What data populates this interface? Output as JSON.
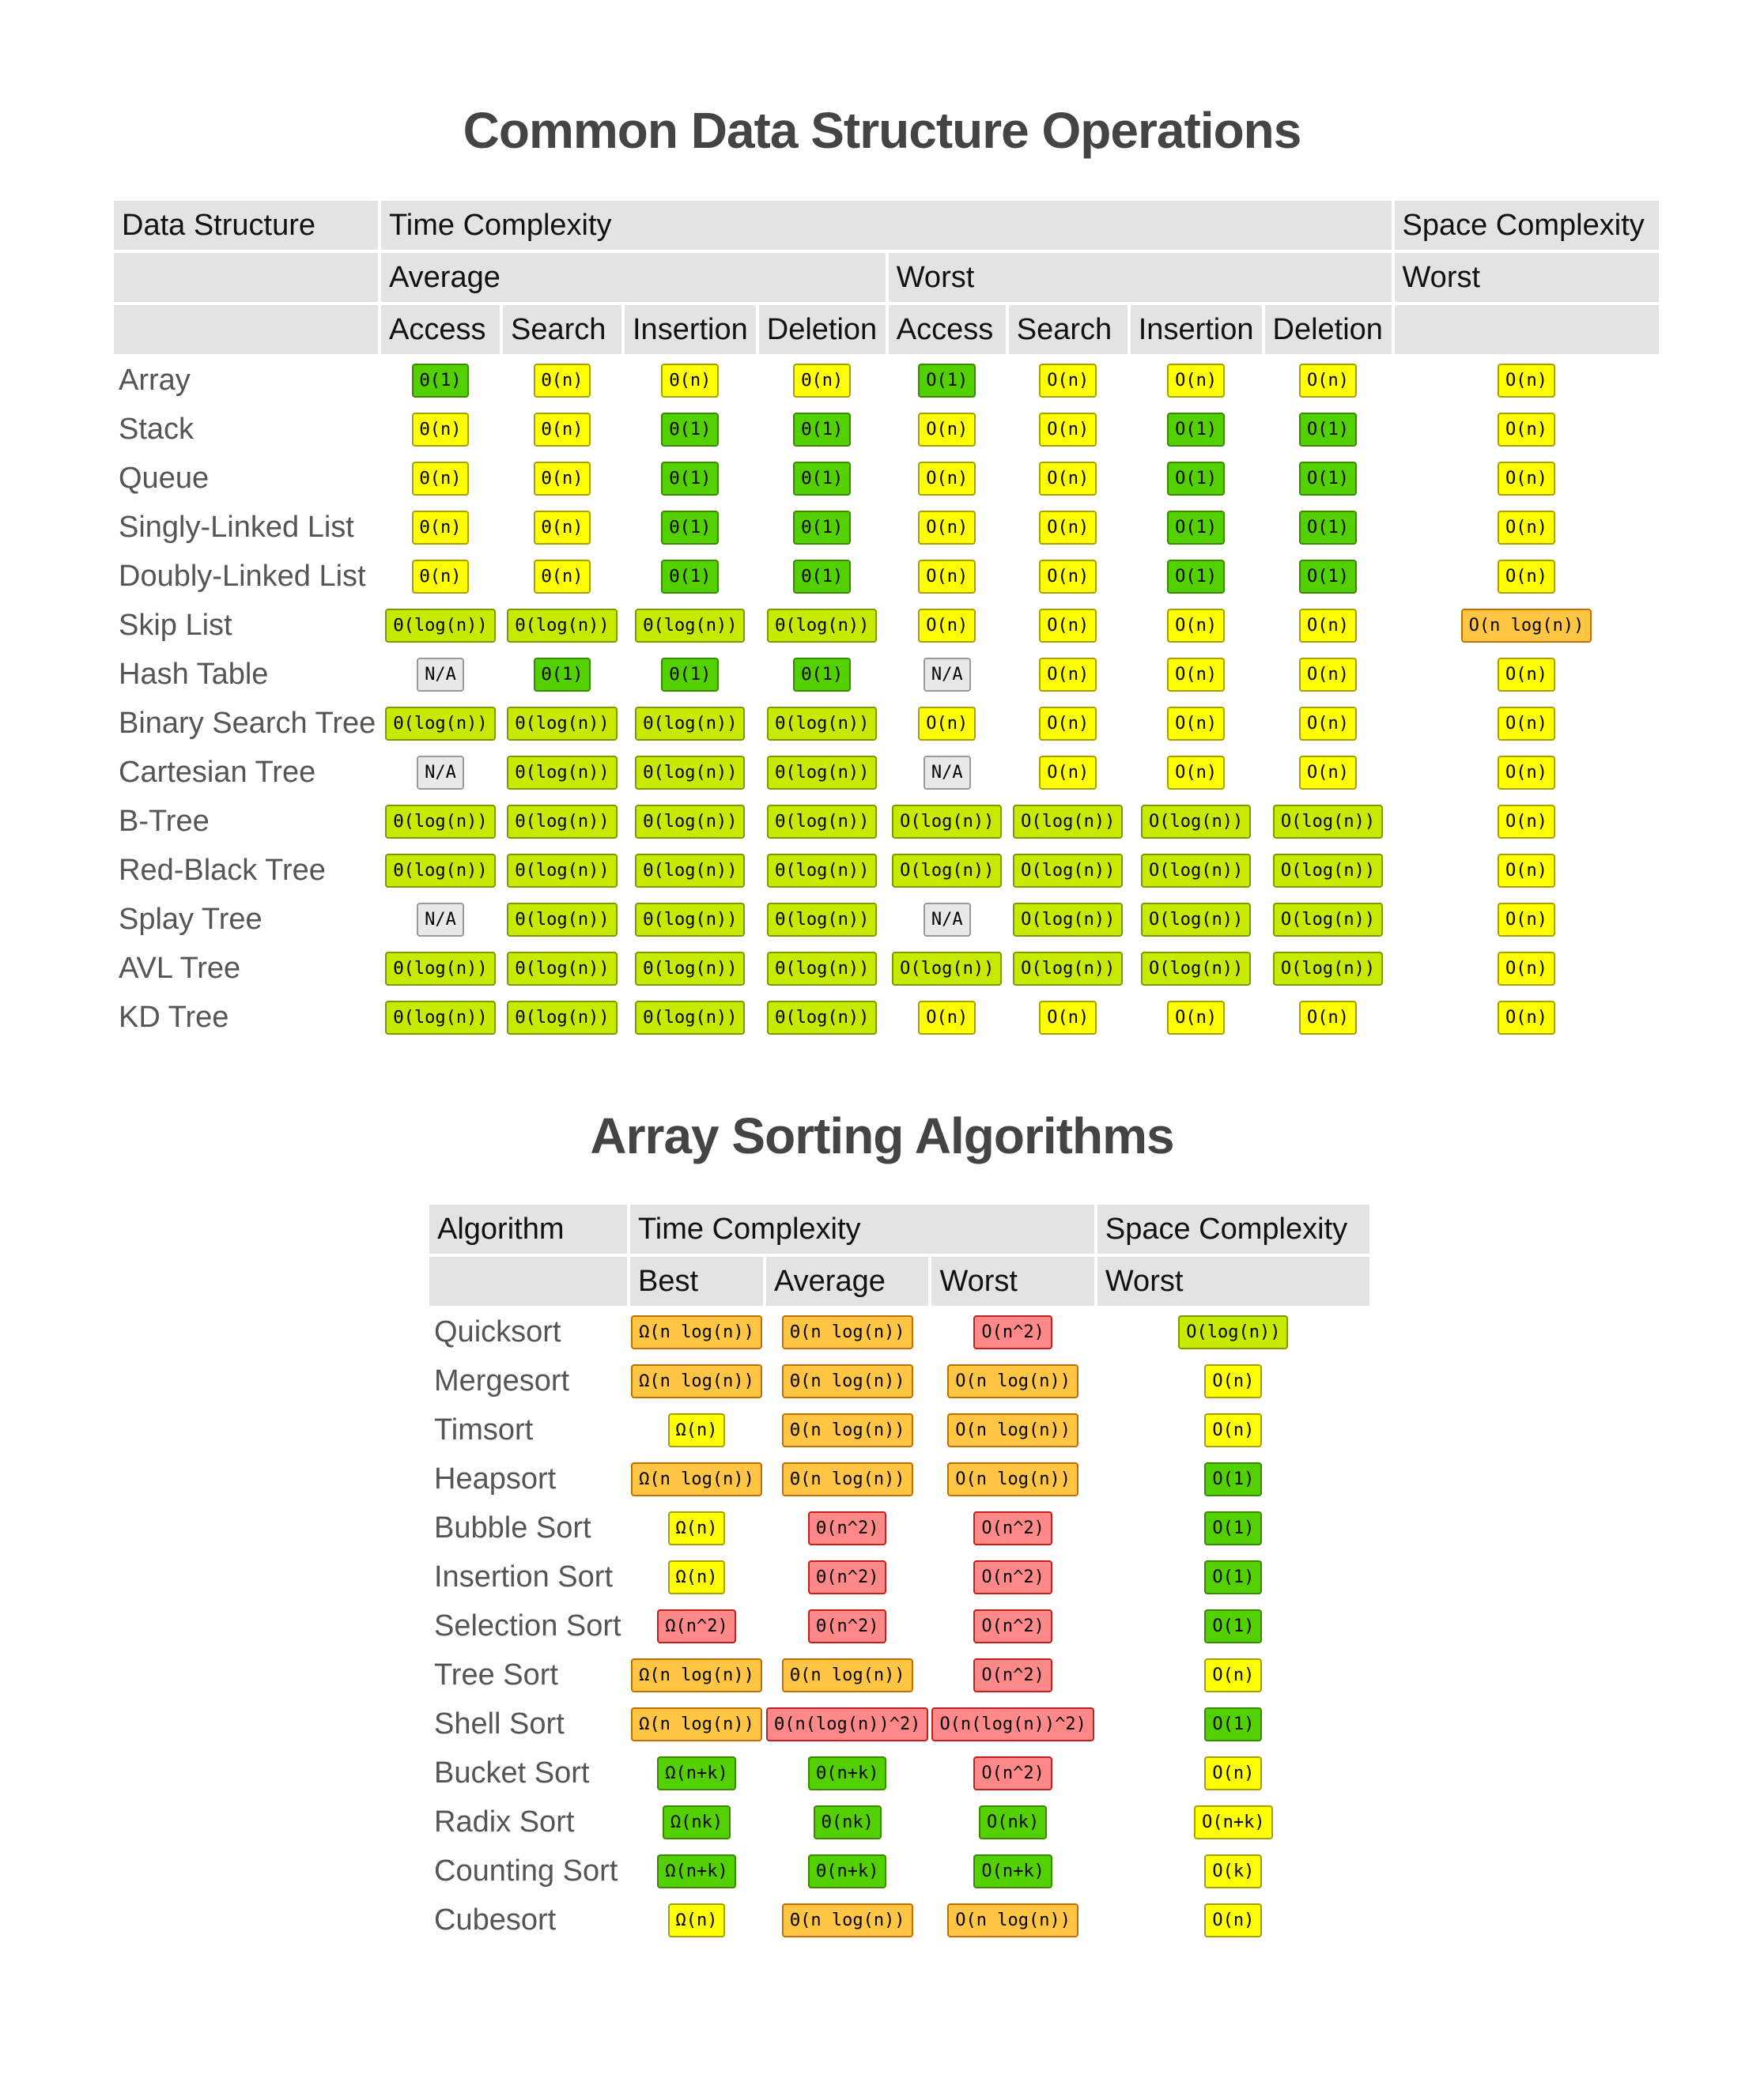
{
  "ops": {
    "title": "Common Data Structure Operations",
    "headers": {
      "data_structure": "Data Structure",
      "time_complexity": "Time Complexity",
      "space_complexity": "Space Complexity",
      "average": "Average",
      "worst": "Worst",
      "space_worst": "Worst",
      "ops": [
        "Access",
        "Search",
        "Insertion",
        "Deletion",
        "Access",
        "Search",
        "Insertion",
        "Deletion"
      ]
    },
    "rows": [
      {
        "name": "Array",
        "cells": [
          [
            "Θ(1)",
            "g"
          ],
          [
            "Θ(n)",
            "y"
          ],
          [
            "Θ(n)",
            "y"
          ],
          [
            "Θ(n)",
            "y"
          ],
          [
            "O(1)",
            "g"
          ],
          [
            "O(n)",
            "y"
          ],
          [
            "O(n)",
            "y"
          ],
          [
            "O(n)",
            "y"
          ],
          [
            "O(n)",
            "y"
          ]
        ]
      },
      {
        "name": "Stack",
        "cells": [
          [
            "Θ(n)",
            "y"
          ],
          [
            "Θ(n)",
            "y"
          ],
          [
            "Θ(1)",
            "g"
          ],
          [
            "Θ(1)",
            "g"
          ],
          [
            "O(n)",
            "y"
          ],
          [
            "O(n)",
            "y"
          ],
          [
            "O(1)",
            "g"
          ],
          [
            "O(1)",
            "g"
          ],
          [
            "O(n)",
            "y"
          ]
        ]
      },
      {
        "name": "Queue",
        "cells": [
          [
            "Θ(n)",
            "y"
          ],
          [
            "Θ(n)",
            "y"
          ],
          [
            "Θ(1)",
            "g"
          ],
          [
            "Θ(1)",
            "g"
          ],
          [
            "O(n)",
            "y"
          ],
          [
            "O(n)",
            "y"
          ],
          [
            "O(1)",
            "g"
          ],
          [
            "O(1)",
            "g"
          ],
          [
            "O(n)",
            "y"
          ]
        ]
      },
      {
        "name": "Singly-Linked List",
        "cells": [
          [
            "Θ(n)",
            "y"
          ],
          [
            "Θ(n)",
            "y"
          ],
          [
            "Θ(1)",
            "g"
          ],
          [
            "Θ(1)",
            "g"
          ],
          [
            "O(n)",
            "y"
          ],
          [
            "O(n)",
            "y"
          ],
          [
            "O(1)",
            "g"
          ],
          [
            "O(1)",
            "g"
          ],
          [
            "O(n)",
            "y"
          ]
        ]
      },
      {
        "name": "Doubly-Linked List",
        "cells": [
          [
            "Θ(n)",
            "y"
          ],
          [
            "Θ(n)",
            "y"
          ],
          [
            "Θ(1)",
            "g"
          ],
          [
            "Θ(1)",
            "g"
          ],
          [
            "O(n)",
            "y"
          ],
          [
            "O(n)",
            "y"
          ],
          [
            "O(1)",
            "g"
          ],
          [
            "O(1)",
            "g"
          ],
          [
            "O(n)",
            "y"
          ]
        ]
      },
      {
        "name": "Skip List",
        "cells": [
          [
            "Θ(log(n))",
            "yg"
          ],
          [
            "Θ(log(n))",
            "yg"
          ],
          [
            "Θ(log(n))",
            "yg"
          ],
          [
            "Θ(log(n))",
            "yg"
          ],
          [
            "O(n)",
            "y"
          ],
          [
            "O(n)",
            "y"
          ],
          [
            "O(n)",
            "y"
          ],
          [
            "O(n)",
            "y"
          ],
          [
            "O(n log(n))",
            "o"
          ]
        ]
      },
      {
        "name": "Hash Table",
        "cells": [
          [
            "N/A",
            "na"
          ],
          [
            "Θ(1)",
            "g"
          ],
          [
            "Θ(1)",
            "g"
          ],
          [
            "Θ(1)",
            "g"
          ],
          [
            "N/A",
            "na"
          ],
          [
            "O(n)",
            "y"
          ],
          [
            "O(n)",
            "y"
          ],
          [
            "O(n)",
            "y"
          ],
          [
            "O(n)",
            "y"
          ]
        ]
      },
      {
        "name": "Binary Search Tree",
        "cells": [
          [
            "Θ(log(n))",
            "yg"
          ],
          [
            "Θ(log(n))",
            "yg"
          ],
          [
            "Θ(log(n))",
            "yg"
          ],
          [
            "Θ(log(n))",
            "yg"
          ],
          [
            "O(n)",
            "y"
          ],
          [
            "O(n)",
            "y"
          ],
          [
            "O(n)",
            "y"
          ],
          [
            "O(n)",
            "y"
          ],
          [
            "O(n)",
            "y"
          ]
        ]
      },
      {
        "name": "Cartesian Tree",
        "cells": [
          [
            "N/A",
            "na"
          ],
          [
            "Θ(log(n))",
            "yg"
          ],
          [
            "Θ(log(n))",
            "yg"
          ],
          [
            "Θ(log(n))",
            "yg"
          ],
          [
            "N/A",
            "na"
          ],
          [
            "O(n)",
            "y"
          ],
          [
            "O(n)",
            "y"
          ],
          [
            "O(n)",
            "y"
          ],
          [
            "O(n)",
            "y"
          ]
        ]
      },
      {
        "name": "B-Tree",
        "cells": [
          [
            "Θ(log(n))",
            "yg"
          ],
          [
            "Θ(log(n))",
            "yg"
          ],
          [
            "Θ(log(n))",
            "yg"
          ],
          [
            "Θ(log(n))",
            "yg"
          ],
          [
            "O(log(n))",
            "yg"
          ],
          [
            "O(log(n))",
            "yg"
          ],
          [
            "O(log(n))",
            "yg"
          ],
          [
            "O(log(n))",
            "yg"
          ],
          [
            "O(n)",
            "y"
          ]
        ]
      },
      {
        "name": "Red-Black Tree",
        "cells": [
          [
            "Θ(log(n))",
            "yg"
          ],
          [
            "Θ(log(n))",
            "yg"
          ],
          [
            "Θ(log(n))",
            "yg"
          ],
          [
            "Θ(log(n))",
            "yg"
          ],
          [
            "O(log(n))",
            "yg"
          ],
          [
            "O(log(n))",
            "yg"
          ],
          [
            "O(log(n))",
            "yg"
          ],
          [
            "O(log(n))",
            "yg"
          ],
          [
            "O(n)",
            "y"
          ]
        ]
      },
      {
        "name": "Splay Tree",
        "cells": [
          [
            "N/A",
            "na"
          ],
          [
            "Θ(log(n))",
            "yg"
          ],
          [
            "Θ(log(n))",
            "yg"
          ],
          [
            "Θ(log(n))",
            "yg"
          ],
          [
            "N/A",
            "na"
          ],
          [
            "O(log(n))",
            "yg"
          ],
          [
            "O(log(n))",
            "yg"
          ],
          [
            "O(log(n))",
            "yg"
          ],
          [
            "O(n)",
            "y"
          ]
        ]
      },
      {
        "name": "AVL Tree",
        "cells": [
          [
            "Θ(log(n))",
            "yg"
          ],
          [
            "Θ(log(n))",
            "yg"
          ],
          [
            "Θ(log(n))",
            "yg"
          ],
          [
            "Θ(log(n))",
            "yg"
          ],
          [
            "O(log(n))",
            "yg"
          ],
          [
            "O(log(n))",
            "yg"
          ],
          [
            "O(log(n))",
            "yg"
          ],
          [
            "O(log(n))",
            "yg"
          ],
          [
            "O(n)",
            "y"
          ]
        ]
      },
      {
        "name": "KD Tree",
        "cells": [
          [
            "Θ(log(n))",
            "yg"
          ],
          [
            "Θ(log(n))",
            "yg"
          ],
          [
            "Θ(log(n))",
            "yg"
          ],
          [
            "Θ(log(n))",
            "yg"
          ],
          [
            "O(n)",
            "y"
          ],
          [
            "O(n)",
            "y"
          ],
          [
            "O(n)",
            "y"
          ],
          [
            "O(n)",
            "y"
          ],
          [
            "O(n)",
            "y"
          ]
        ]
      }
    ]
  },
  "sort": {
    "title": "Array Sorting Algorithms",
    "headers": {
      "algorithm": "Algorithm",
      "time_complexity": "Time Complexity",
      "space_complexity": "Space Complexity",
      "best": "Best",
      "average": "Average",
      "worst": "Worst",
      "space_worst": "Worst"
    },
    "rows": [
      {
        "name": "Quicksort",
        "cells": [
          [
            "Ω(n log(n))",
            "o"
          ],
          [
            "Θ(n log(n))",
            "o"
          ],
          [
            "O(n^2)",
            "r"
          ],
          [
            "O(log(n))",
            "yg"
          ]
        ]
      },
      {
        "name": "Mergesort",
        "cells": [
          [
            "Ω(n log(n))",
            "o"
          ],
          [
            "Θ(n log(n))",
            "o"
          ],
          [
            "O(n log(n))",
            "o"
          ],
          [
            "O(n)",
            "y"
          ]
        ]
      },
      {
        "name": "Timsort",
        "cells": [
          [
            "Ω(n)",
            "y"
          ],
          [
            "Θ(n log(n))",
            "o"
          ],
          [
            "O(n log(n))",
            "o"
          ],
          [
            "O(n)",
            "y"
          ]
        ]
      },
      {
        "name": "Heapsort",
        "cells": [
          [
            "Ω(n log(n))",
            "o"
          ],
          [
            "Θ(n log(n))",
            "o"
          ],
          [
            "O(n log(n))",
            "o"
          ],
          [
            "O(1)",
            "g"
          ]
        ]
      },
      {
        "name": "Bubble Sort",
        "cells": [
          [
            "Ω(n)",
            "y"
          ],
          [
            "Θ(n^2)",
            "r"
          ],
          [
            "O(n^2)",
            "r"
          ],
          [
            "O(1)",
            "g"
          ]
        ]
      },
      {
        "name": "Insertion Sort",
        "cells": [
          [
            "Ω(n)",
            "y"
          ],
          [
            "Θ(n^2)",
            "r"
          ],
          [
            "O(n^2)",
            "r"
          ],
          [
            "O(1)",
            "g"
          ]
        ]
      },
      {
        "name": "Selection Sort",
        "cells": [
          [
            "Ω(n^2)",
            "r"
          ],
          [
            "Θ(n^2)",
            "r"
          ],
          [
            "O(n^2)",
            "r"
          ],
          [
            "O(1)",
            "g"
          ]
        ]
      },
      {
        "name": "Tree Sort",
        "cells": [
          [
            "Ω(n log(n))",
            "o"
          ],
          [
            "Θ(n log(n))",
            "o"
          ],
          [
            "O(n^2)",
            "r"
          ],
          [
            "O(n)",
            "y"
          ]
        ]
      },
      {
        "name": "Shell Sort",
        "cells": [
          [
            "Ω(n log(n))",
            "o"
          ],
          [
            "Θ(n(log(n))^2)",
            "r"
          ],
          [
            "O(n(log(n))^2)",
            "r"
          ],
          [
            "O(1)",
            "g"
          ]
        ]
      },
      {
        "name": "Bucket Sort",
        "cells": [
          [
            "Ω(n+k)",
            "g"
          ],
          [
            "Θ(n+k)",
            "g"
          ],
          [
            "O(n^2)",
            "r"
          ],
          [
            "O(n)",
            "y"
          ]
        ]
      },
      {
        "name": "Radix Sort",
        "cells": [
          [
            "Ω(nk)",
            "g"
          ],
          [
            "Θ(nk)",
            "g"
          ],
          [
            "O(nk)",
            "g"
          ],
          [
            "O(n+k)",
            "y"
          ]
        ]
      },
      {
        "name": "Counting Sort",
        "cells": [
          [
            "Ω(n+k)",
            "g"
          ],
          [
            "Θ(n+k)",
            "g"
          ],
          [
            "O(n+k)",
            "g"
          ],
          [
            "O(k)",
            "y"
          ]
        ]
      },
      {
        "name": "Cubesort",
        "cells": [
          [
            "Ω(n)",
            "y"
          ],
          [
            "Θ(n log(n))",
            "o"
          ],
          [
            "O(n log(n))",
            "o"
          ],
          [
            "O(n)",
            "y"
          ]
        ]
      }
    ]
  }
}
